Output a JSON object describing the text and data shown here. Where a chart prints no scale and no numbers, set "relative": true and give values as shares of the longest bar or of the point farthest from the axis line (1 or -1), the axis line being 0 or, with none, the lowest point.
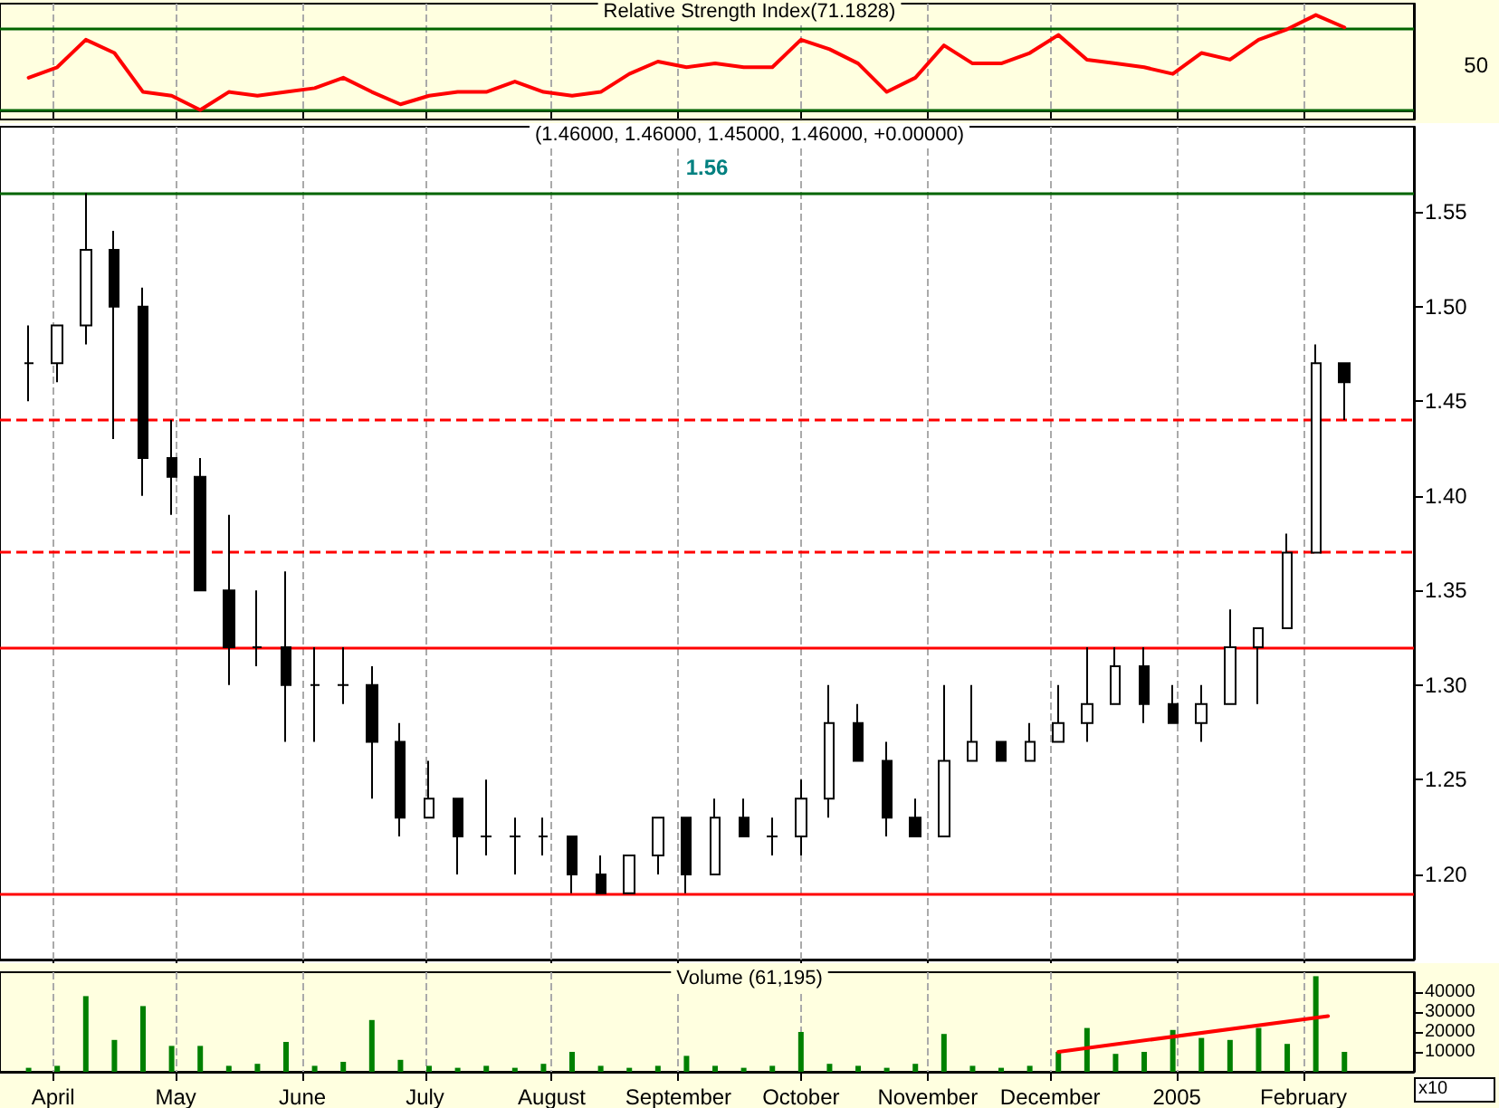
{
  "chart_data": [
    {
      "type": "line",
      "title": "Relative Strength Index(71.1828)",
      "relative": true,
      "tick_labels": false,
      "annotations": [
        "50"
      ],
      "grid": "x",
      "marker": "none",
      "line_style": "solid",
      "x": [
        "2004-03-26",
        "2004-04-02",
        "2004-04-09",
        "2004-04-16",
        "2004-04-23",
        "2004-04-30",
        "2004-05-07",
        "2004-05-14",
        "2004-05-21",
        "2004-05-28",
        "2004-06-04",
        "2004-06-11",
        "2004-06-18",
        "2004-06-25",
        "2004-07-02",
        "2004-07-09",
        "2004-07-16",
        "2004-07-23",
        "2004-07-30",
        "2004-08-06",
        "2004-08-13",
        "2004-08-20",
        "2004-08-27",
        "2004-09-03",
        "2004-09-10",
        "2004-09-17",
        "2004-09-24",
        "2004-10-01",
        "2004-10-08",
        "2004-10-15",
        "2004-10-22",
        "2004-10-29",
        "2004-11-05",
        "2004-11-12",
        "2004-11-19",
        "2004-11-26",
        "2004-12-03",
        "2004-12-10",
        "2004-12-17",
        "2004-12-24",
        "2004-12-31",
        "2005-01-07",
        "2005-01-14",
        "2005-01-21",
        "2005-01-28",
        "2005-02-04",
        "2005-02-11"
      ],
      "series": [
        {
          "color": "#ff0000",
          "values": [
            0.34,
            0.45,
            0.74,
            0.6,
            0.19,
            0.15,
            0,
            0.19,
            0.15,
            0.19,
            0.23,
            0.34,
            0.19,
            0.06,
            0.15,
            0.19,
            0.19,
            0.3,
            0.19,
            0.15,
            0.19,
            0.38,
            0.51,
            0.45,
            0.49,
            0.45,
            0.45,
            0.74,
            0.64,
            0.49,
            0.19,
            0.34,
            0.68,
            0.49,
            0.49,
            0.6,
            0.79,
            0.53,
            0.49,
            0.45,
            0.38,
            0.6,
            0.53,
            0.74,
            0.85,
            1,
            0.87
          ]
        }
      ],
      "xlim": [
        "2004-03-19",
        "2005-02-28"
      ],
      "xticks": [
        {
          "value": "2004-04-01",
          "label": null
        },
        {
          "value": "2004-05-01",
          "label": null
        },
        {
          "value": "2004-06-01",
          "label": null
        },
        {
          "value": "2004-07-01",
          "label": null
        },
        {
          "value": "2004-08-01",
          "label": null
        },
        {
          "value": "2004-09-01",
          "label": null
        },
        {
          "value": "2004-10-01",
          "label": null
        },
        {
          "value": "2004-11-01",
          "label": null
        },
        {
          "value": "2004-12-01",
          "label": null
        },
        {
          "value": "2005-01-01",
          "label": null
        },
        {
          "value": "2005-02-01",
          "label": null
        }
      ],
      "ref_lines": [
        {
          "axis": "y",
          "value": 0.85,
          "label": null,
          "color": "#006400"
        },
        {
          "axis": "y",
          "value": 0,
          "label": null,
          "color": "#006400"
        }
      ]
    },
    {
      "type": "candlestick",
      "title": "(1.46000, 1.46000, 1.45000, 1.46000, +0.00000)",
      "tick_labels": "y",
      "grid": "x",
      "x": [
        "2004-03-26",
        "2004-04-02",
        "2004-04-09",
        "2004-04-16",
        "2004-04-23",
        "2004-04-30",
        "2004-05-07",
        "2004-05-14",
        "2004-05-21",
        "2004-05-28",
        "2004-06-04",
        "2004-06-11",
        "2004-06-18",
        "2004-06-25",
        "2004-07-02",
        "2004-07-09",
        "2004-07-16",
        "2004-07-23",
        "2004-07-30",
        "2004-08-06",
        "2004-08-13",
        "2004-08-20",
        "2004-08-27",
        "2004-09-03",
        "2004-09-10",
        "2004-09-17",
        "2004-09-24",
        "2004-10-01",
        "2004-10-08",
        "2004-10-15",
        "2004-10-22",
        "2004-10-29",
        "2004-11-05",
        "2004-11-12",
        "2004-11-19",
        "2004-11-26",
        "2004-12-03",
        "2004-12-10",
        "2004-12-17",
        "2004-12-24",
        "2004-12-31",
        "2005-01-07",
        "2005-01-14",
        "2005-01-21",
        "2005-01-28",
        "2005-02-04",
        "2005-02-11"
      ],
      "ohlc": [
        [
          1.47,
          1.49,
          1.45,
          1.47
        ],
        [
          1.47,
          1.49,
          1.46,
          1.49
        ],
        [
          1.49,
          1.56,
          1.48,
          1.53
        ],
        [
          1.53,
          1.54,
          1.43,
          1.5
        ],
        [
          1.5,
          1.51,
          1.4,
          1.42
        ],
        [
          1.42,
          1.44,
          1.39,
          1.41
        ],
        [
          1.41,
          1.42,
          1.35,
          1.35
        ],
        [
          1.35,
          1.39,
          1.3,
          1.32
        ],
        [
          1.32,
          1.35,
          1.31,
          1.32
        ],
        [
          1.32,
          1.36,
          1.27,
          1.3
        ],
        [
          1.3,
          1.32,
          1.27,
          1.3
        ],
        [
          1.3,
          1.32,
          1.29,
          1.3
        ],
        [
          1.3,
          1.31,
          1.24,
          1.27
        ],
        [
          1.27,
          1.28,
          1.22,
          1.23
        ],
        [
          1.23,
          1.26,
          1.23,
          1.24
        ],
        [
          1.24,
          1.24,
          1.2,
          1.22
        ],
        [
          1.22,
          1.25,
          1.21,
          1.22
        ],
        [
          1.22,
          1.23,
          1.2,
          1.22
        ],
        [
          1.22,
          1.23,
          1.21,
          1.22
        ],
        [
          1.22,
          1.22,
          1.19,
          1.2
        ],
        [
          1.2,
          1.21,
          1.19,
          1.19
        ],
        [
          1.19,
          1.21,
          1.19,
          1.21
        ],
        [
          1.21,
          1.23,
          1.2,
          1.23
        ],
        [
          1.23,
          1.23,
          1.19,
          1.2
        ],
        [
          1.2,
          1.24,
          1.2,
          1.23
        ],
        [
          1.23,
          1.24,
          1.22,
          1.22
        ],
        [
          1.22,
          1.23,
          1.21,
          1.22
        ],
        [
          1.22,
          1.25,
          1.21,
          1.24
        ],
        [
          1.24,
          1.3,
          1.23,
          1.28
        ],
        [
          1.28,
          1.29,
          1.26,
          1.26
        ],
        [
          1.26,
          1.27,
          1.22,
          1.23
        ],
        [
          1.23,
          1.24,
          1.22,
          1.22
        ],
        [
          1.22,
          1.3,
          1.22,
          1.26
        ],
        [
          1.26,
          1.3,
          1.26,
          1.27
        ],
        [
          1.27,
          1.27,
          1.26,
          1.26
        ],
        [
          1.26,
          1.28,
          1.26,
          1.27
        ],
        [
          1.27,
          1.3,
          1.27,
          1.28
        ],
        [
          1.28,
          1.32,
          1.27,
          1.29
        ],
        [
          1.29,
          1.32,
          1.29,
          1.31
        ],
        [
          1.31,
          1.32,
          1.28,
          1.29
        ],
        [
          1.29,
          1.3,
          1.28,
          1.28
        ],
        [
          1.28,
          1.3,
          1.27,
          1.29
        ],
        [
          1.29,
          1.34,
          1.29,
          1.32
        ],
        [
          1.32,
          1.33,
          1.29,
          1.33
        ],
        [
          1.33,
          1.38,
          1.33,
          1.37
        ],
        [
          1.37,
          1.48,
          1.37,
          1.47
        ],
        [
          1.47,
          1.47,
          1.44,
          1.46
        ]
      ],
      "xlim": [
        "2004-03-19",
        "2005-02-28"
      ],
      "xticks": [
        {
          "value": "2004-04-01",
          "label": null
        },
        {
          "value": "2004-05-01",
          "label": null
        },
        {
          "value": "2004-06-01",
          "label": null
        },
        {
          "value": "2004-07-01",
          "label": null
        },
        {
          "value": "2004-08-01",
          "label": null
        },
        {
          "value": "2004-09-01",
          "label": null
        },
        {
          "value": "2004-10-01",
          "label": null
        },
        {
          "value": "2004-11-01",
          "label": null
        },
        {
          "value": "2004-12-01",
          "label": null
        },
        {
          "value": "2005-01-01",
          "label": null
        },
        {
          "value": "2005-02-01",
          "label": null
        }
      ],
      "ylim": [
        1.155,
        1.595
      ],
      "yticks": [
        {
          "value": 1.2,
          "label": "1.20"
        },
        {
          "value": 1.25,
          "label": "1.25"
        },
        {
          "value": 1.3,
          "label": "1.30"
        },
        {
          "value": 1.35,
          "label": "1.35"
        },
        {
          "value": 1.4,
          "label": "1.40"
        },
        {
          "value": 1.45,
          "label": "1.45"
        },
        {
          "value": 1.5,
          "label": "1.50"
        },
        {
          "value": 1.55,
          "label": "1.55"
        }
      ],
      "ref_lines": [
        {
          "axis": "y",
          "value": 1.56,
          "label": "1.56",
          "color": "#006400",
          "line_style": "solid"
        },
        {
          "axis": "y",
          "value": 1.44,
          "label": null,
          "color": "#ff0000",
          "line_style": "dashed"
        },
        {
          "axis": "y",
          "value": 1.37,
          "label": null,
          "color": "#ff0000",
          "line_style": "dashed"
        },
        {
          "axis": "y",
          "value": 1.32,
          "label": null,
          "color": "#ff0000",
          "line_style": "solid"
        },
        {
          "axis": "y",
          "value": 1.19,
          "label": null,
          "color": "#ff0000",
          "line_style": "solid"
        }
      ]
    },
    {
      "type": "bar",
      "title": "Volume (61,195)",
      "grid": "x",
      "annotations": [
        "x10"
      ],
      "x": [
        "2004-03-26",
        "2004-04-02",
        "2004-04-09",
        "2004-04-16",
        "2004-04-23",
        "2004-04-30",
        "2004-05-07",
        "2004-05-14",
        "2004-05-21",
        "2004-05-28",
        "2004-06-04",
        "2004-06-11",
        "2004-06-18",
        "2004-06-25",
        "2004-07-02",
        "2004-07-09",
        "2004-07-16",
        "2004-07-23",
        "2004-07-30",
        "2004-08-06",
        "2004-08-13",
        "2004-08-20",
        "2004-08-27",
        "2004-09-03",
        "2004-09-10",
        "2004-09-17",
        "2004-09-24",
        "2004-10-01",
        "2004-10-08",
        "2004-10-15",
        "2004-10-22",
        "2004-10-29",
        "2004-11-05",
        "2004-11-12",
        "2004-11-19",
        "2004-11-26",
        "2004-12-03",
        "2004-12-10",
        "2004-12-17",
        "2004-12-24",
        "2004-12-31",
        "2005-01-07",
        "2005-01-14",
        "2005-01-21",
        "2005-01-28",
        "2005-02-04",
        "2005-02-11"
      ],
      "series": [
        {
          "color": "#008000",
          "values": [
            2000,
            3000,
            38000,
            16000,
            33000,
            13000,
            13000,
            3000,
            4000,
            15000,
            3000,
            5000,
            26000,
            6000,
            3000,
            2000,
            3000,
            2000,
            4000,
            10000,
            3000,
            2000,
            3000,
            8000,
            3000,
            2000,
            3000,
            20000,
            4000,
            3000,
            2000,
            4000,
            19000,
            3000,
            2000,
            3000,
            10000,
            22000,
            9000,
            10000,
            21000,
            17000,
            16000,
            22000,
            14000,
            48000,
            10000
          ]
        },
        {
          "type": "line",
          "color": "#ff0000",
          "x": [
            "2004-12-03",
            "2005-02-07"
          ],
          "values": [
            10000,
            28000
          ]
        }
      ],
      "xlim": [
        "2004-03-19",
        "2005-02-28"
      ],
      "xticks": [
        {
          "value": "2004-04-01",
          "label": "April"
        },
        {
          "value": "2004-05-01",
          "label": "May"
        },
        {
          "value": "2004-06-01",
          "label": "June"
        },
        {
          "value": "2004-07-01",
          "label": "July"
        },
        {
          "value": "2004-08-01",
          "label": "August"
        },
        {
          "value": "2004-09-01",
          "label": "September"
        },
        {
          "value": "2004-10-01",
          "label": "October"
        },
        {
          "value": "2004-11-01",
          "label": "November"
        },
        {
          "value": "2004-12-01",
          "label": "December"
        },
        {
          "value": "2005-01-01",
          "label": "2005"
        },
        {
          "value": "2005-02-01",
          "label": "February"
        }
      ],
      "ylim": [
        0,
        50000
      ],
      "yticks": [
        10000,
        20000,
        30000,
        40000
      ]
    }
  ]
}
